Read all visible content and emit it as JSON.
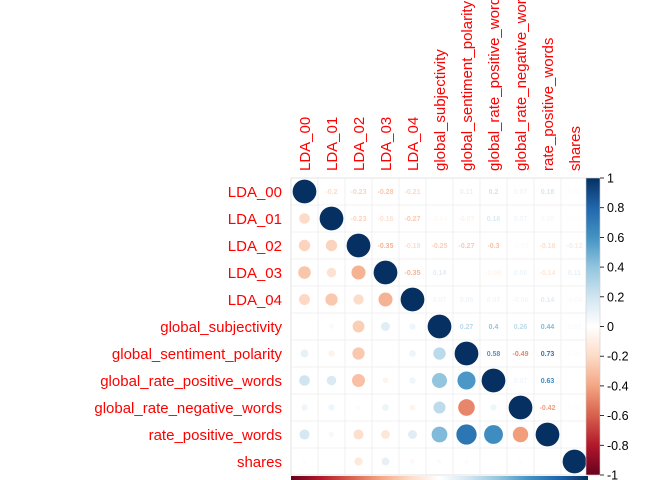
{
  "chart_data": {
    "type": "heatmap",
    "method": "mixed: lower=circle, upper=number",
    "variables": [
      "LDA_00",
      "LDA_01",
      "LDA_02",
      "LDA_03",
      "LDA_04",
      "global_subjectivity",
      "global_sentiment_polarity",
      "global_rate_positive_words",
      "global_rate_negative_words",
      "rate_positive_words",
      "shares"
    ],
    "matrix": [
      [
        1.0,
        -0.2,
        -0.23,
        -0.28,
        -0.21,
        0.0,
        0.11,
        0.2,
        0.07,
        0.18,
        0.02
      ],
      [
        -0.2,
        1.0,
        -0.23,
        -0.16,
        -0.27,
        -0.04,
        -0.07,
        0.16,
        0.07,
        0.05,
        -0.01
      ],
      [
        -0.23,
        -0.23,
        1.0,
        -0.35,
        -0.19,
        -0.25,
        -0.27,
        -0.3,
        -0.03,
        -0.18,
        -0.12
      ],
      [
        -0.28,
        -0.16,
        -0.35,
        1.0,
        -0.35,
        0.14,
        0.0,
        -0.06,
        0.08,
        -0.14,
        0.11
      ],
      [
        -0.21,
        -0.27,
        -0.19,
        -0.35,
        1.0,
        0.07,
        0.08,
        0.07,
        -0.06,
        0.14,
        -0.04
      ],
      [
        0.0,
        -0.04,
        -0.25,
        0.14,
        0.07,
        1.0,
        0.27,
        0.4,
        0.26,
        0.44,
        0.03
      ],
      [
        0.11,
        -0.07,
        -0.27,
        0.0,
        0.08,
        0.27,
        1.0,
        0.58,
        -0.49,
        0.73,
        0.02
      ],
      [
        0.2,
        0.16,
        -0.3,
        -0.06,
        0.07,
        0.4,
        0.58,
        1.0,
        0.07,
        0.63,
        0.0
      ],
      [
        0.07,
        0.07,
        -0.03,
        0.08,
        -0.06,
        0.26,
        -0.49,
        0.07,
        1.0,
        -0.42,
        0.02
      ],
      [
        0.18,
        0.05,
        -0.18,
        -0.14,
        0.14,
        0.44,
        0.73,
        0.63,
        -0.42,
        1.0,
        0.01
      ],
      [
        0.02,
        -0.01,
        -0.12,
        0.11,
        -0.04,
        0.03,
        0.02,
        0.0,
        0.02,
        0.01,
        1.0
      ]
    ],
    "upper_labels": [
      [
        null,
        "-0.2",
        "-0.23",
        "-0.28",
        "-0.21",
        "",
        "0.11",
        "0.2",
        "0.07",
        "0.18",
        "0.02"
      ],
      [
        null,
        null,
        "-0.23",
        "-0.16",
        "-0.27",
        "-0.04",
        "-0.07",
        "0.16",
        "0.07",
        "0.05",
        "-0.01"
      ],
      [
        null,
        null,
        null,
        "-0.35",
        "-0.19",
        "-0.25",
        "-0.27",
        "-0.3",
        "-0.03",
        "-0.18",
        "-0.12"
      ],
      [
        null,
        null,
        null,
        null,
        "-0.35",
        "0.14",
        "",
        "-0.06",
        "0.08",
        "-0.14",
        "0.11"
      ],
      [
        null,
        null,
        null,
        null,
        null,
        "0.07",
        "0.08",
        "0.07",
        "-0.06",
        "0.14",
        "-0.04"
      ],
      [
        null,
        null,
        null,
        null,
        null,
        null,
        "0.27",
        "0.4",
        "0.26",
        "0.44",
        "0.03"
      ],
      [
        null,
        null,
        null,
        null,
        null,
        null,
        null,
        "0.58",
        "-0.49",
        "0.73",
        "0.02"
      ],
      [
        null,
        null,
        null,
        null,
        null,
        null,
        null,
        null,
        "0.07",
        "0.63",
        ""
      ],
      [
        null,
        null,
        null,
        null,
        null,
        null,
        null,
        null,
        null,
        "-0.42",
        "0.02"
      ],
      [
        null,
        null,
        null,
        null,
        null,
        null,
        null,
        null,
        null,
        null,
        "0.01"
      ],
      [
        null,
        null,
        null,
        null,
        null,
        null,
        null,
        null,
        null,
        null,
        null
      ]
    ],
    "colorbar": {
      "range": [
        -1,
        1
      ],
      "ticks": [
        -1,
        -0.8,
        -0.6,
        -0.4,
        -0.2,
        0,
        0.2,
        0.4,
        0.6,
        0.8,
        1
      ],
      "tick_labels": [
        "-1",
        "-0.8",
        "-0.6",
        "-0.4",
        "-0.2",
        "0",
        "0.2",
        "0.4",
        "0.6",
        "0.8",
        "1"
      ],
      "colors": [
        "#67001F",
        "#B2182B",
        "#D6604D",
        "#F4A582",
        "#FDDBC7",
        "#FFFFFF",
        "#D1E5F0",
        "#92C5DE",
        "#4393C3",
        "#2166AC",
        "#053061"
      ]
    },
    "label_color": "#ff0000",
    "grid": true
  }
}
